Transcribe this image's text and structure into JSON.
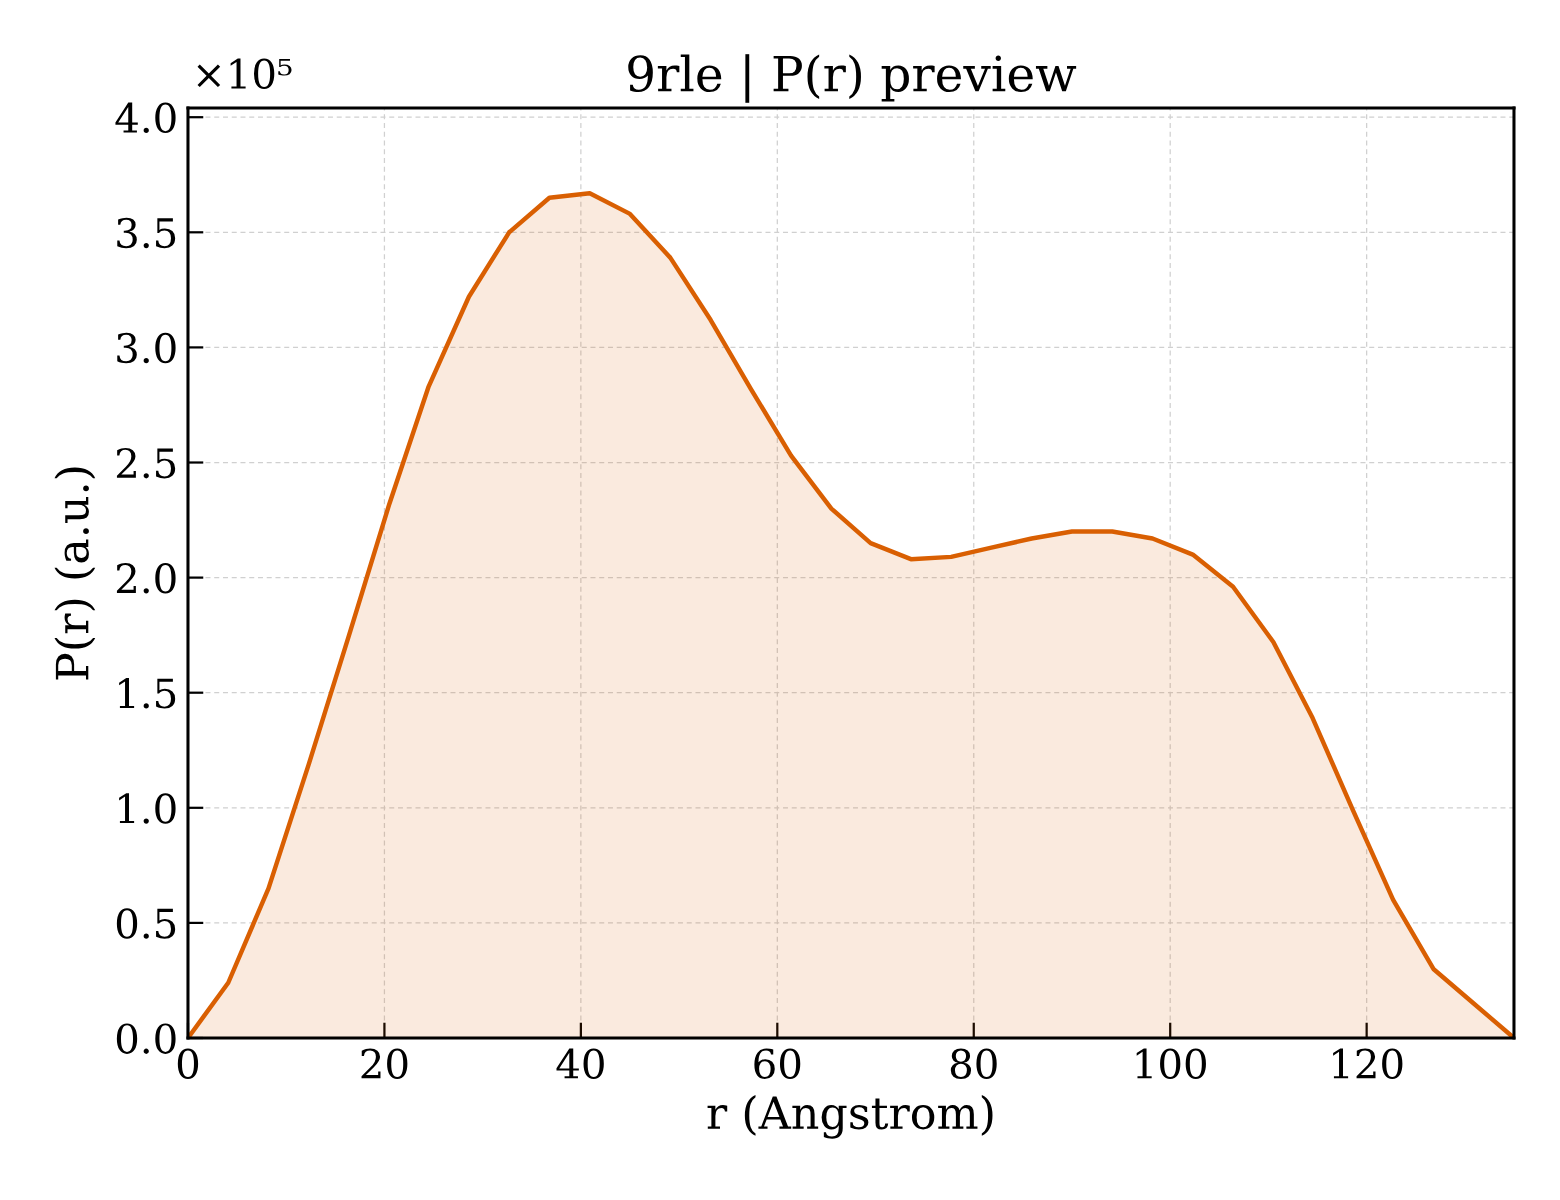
{
  "chart_data": {
    "type": "area",
    "title": "9rle | P(r) preview",
    "xlabel": "r (Angstrom)",
    "ylabel": "P(r) (a.u.)",
    "x": [
      0,
      4.1,
      8.2,
      12.3,
      16.4,
      20.5,
      24.5,
      28.6,
      32.7,
      36.8,
      40.9,
      45.0,
      49.1,
      53.2,
      57.3,
      61.4,
      65.5,
      69.5,
      73.6,
      77.7,
      81.8,
      85.9,
      90.0,
      94.1,
      98.2,
      102.3,
      106.4,
      110.5,
      114.5,
      118.6,
      122.7,
      126.8,
      130.9,
      135
    ],
    "values": [
      0,
      0.24,
      0.65,
      1.19,
      1.75,
      2.32,
      2.83,
      3.22,
      3.5,
      3.65,
      3.67,
      3.58,
      3.39,
      3.12,
      2.82,
      2.53,
      2.3,
      2.15,
      2.08,
      2.09,
      2.13,
      2.17,
      2.2,
      2.2,
      2.17,
      2.1,
      1.96,
      1.72,
      1.39,
      0.99,
      0.6,
      0.3,
      0.15,
      0
    ],
    "color": "#d95f02",
    "xlim": [
      0,
      135
    ],
    "xticks": [
      0,
      20,
      40,
      60,
      80,
      100,
      120
    ],
    "ylim": [
      0,
      4.04
    ],
    "yticks": [
      {
        "value": 0,
        "label": "0.0"
      },
      {
        "value": 0.5,
        "label": "0.5"
      },
      {
        "value": 1,
        "label": "1.0"
      },
      {
        "value": 1.5,
        "label": "1.5"
      },
      {
        "value": 2,
        "label": "2.0"
      },
      {
        "value": 2.5,
        "label": "2.5"
      },
      {
        "value": 3,
        "label": "3.0"
      },
      {
        "value": 3.5,
        "label": "3.5"
      },
      {
        "value": 4,
        "label": "4.0"
      }
    ],
    "grid": true,
    "annotations": [
      "×10⁵"
    ]
  }
}
